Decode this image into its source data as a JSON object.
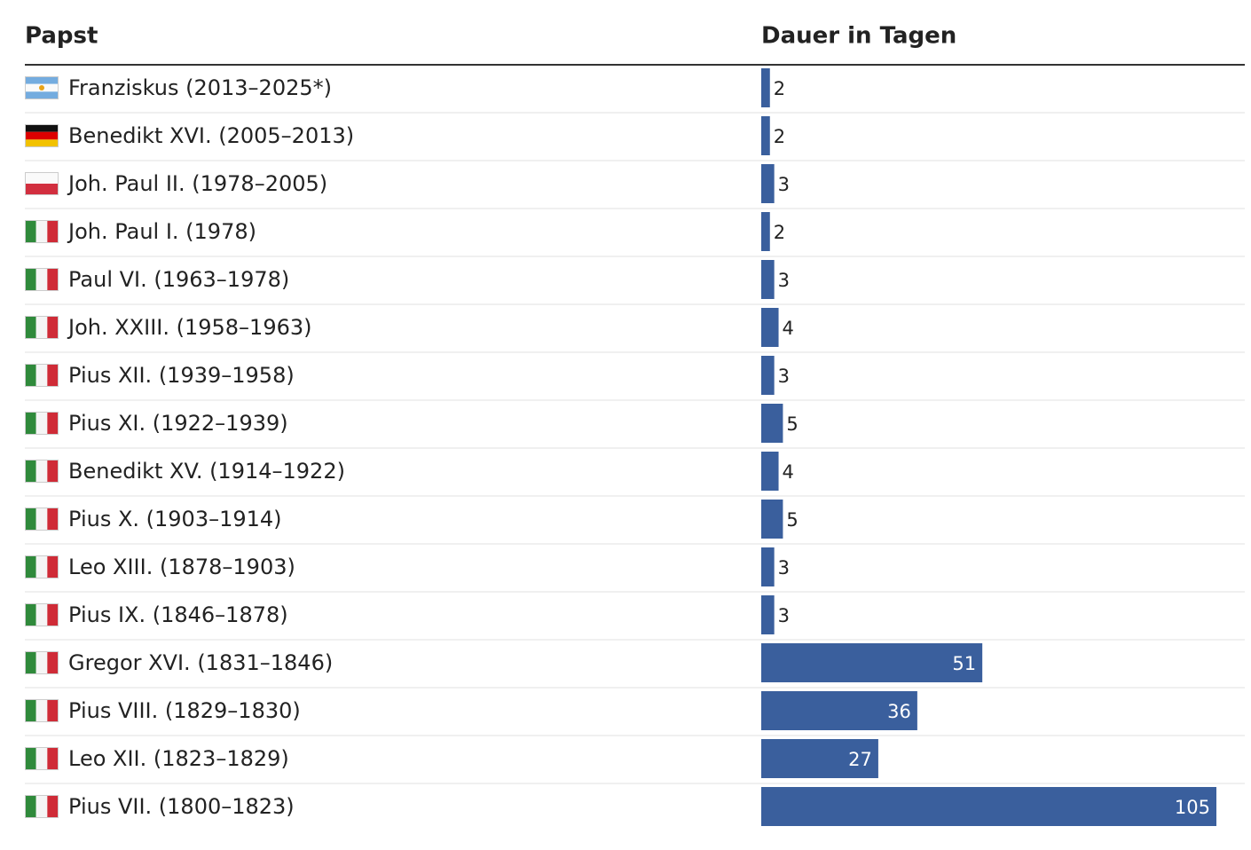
{
  "chart_data": {
    "type": "bar",
    "orientation": "horizontal",
    "columns": [
      "Papst",
      "Dauer in Tagen"
    ],
    "categories": [
      "Franziskus (2013–2025*)",
      "Benedikt XVI. (2005–2013)",
      "Joh. Paul II. (1978–2005)",
      "Joh. Paul I. (1978)",
      "Paul VI. (1963–1978)",
      "Joh. XXIII. (1958–1963)",
      "Pius XII. (1939–1958)",
      "Pius XI. (1922–1939)",
      "Benedikt XV. (1914–1922)",
      "Pius X. (1903–1914)",
      "Leo XIII. (1878–1903)",
      "Pius IX. (1846–1878)",
      "Gregor XVI. (1831–1846)",
      "Pius VIII. (1829–1830)",
      "Leo XII. (1823–1829)",
      "Pius VII. (1800–1823)"
    ],
    "values": [
      2,
      2,
      3,
      2,
      3,
      4,
      3,
      5,
      4,
      5,
      3,
      3,
      51,
      36,
      27,
      105
    ],
    "color": "#3a5f9d"
  }
}
